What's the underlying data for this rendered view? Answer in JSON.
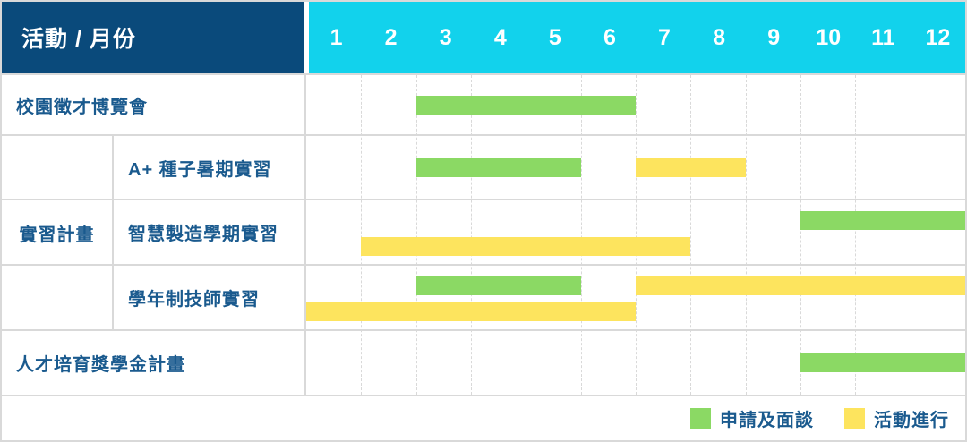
{
  "header": {
    "corner_label": "活動 / 月份"
  },
  "colors": {
    "header_bg": "#0a4a7b",
    "month_header_bg": "#12d2ec",
    "green": "#8bd964",
    "yellow": "#fde45e",
    "label_text": "#1a5a8e",
    "grid_line": "#d9d9d9"
  },
  "chart_data": {
    "type": "bar",
    "variant": "gantt",
    "title": "活動 / 月份",
    "x_categories": [
      "1",
      "2",
      "3",
      "4",
      "5",
      "6",
      "7",
      "8",
      "9",
      "10",
      "11",
      "12"
    ],
    "x_range": [
      1,
      12
    ],
    "grid": "dashed-vertical",
    "legend_position": "bottom-right",
    "legend": [
      {
        "label": "申請及面談",
        "color": "#8bd964"
      },
      {
        "label": "活動進行",
        "color": "#fde45e"
      }
    ],
    "rows": [
      {
        "group": "",
        "label": "校園徵才博覽會",
        "bars": [
          {
            "phase": "申請及面談",
            "start_month": 3,
            "end_month": 6,
            "lane": "center"
          }
        ]
      },
      {
        "group": "實習計畫",
        "label": "A+ 種子暑期實習",
        "bars": [
          {
            "phase": "申請及面談",
            "start_month": 3,
            "end_month": 5,
            "lane": "center"
          },
          {
            "phase": "活動進行",
            "start_month": 7,
            "end_month": 8,
            "lane": "center"
          }
        ]
      },
      {
        "group": "實習計畫",
        "label": "智慧製造學期實習",
        "bars": [
          {
            "phase": "申請及面談",
            "start_month": 10,
            "end_month": 12,
            "lane": "top"
          },
          {
            "phase": "活動進行",
            "start_month": 2,
            "end_month": 7,
            "lane": "bottom"
          }
        ]
      },
      {
        "group": "實習計畫",
        "label": "學年制技師實習",
        "bars": [
          {
            "phase": "申請及面談",
            "start_month": 3,
            "end_month": 5,
            "lane": "top"
          },
          {
            "phase": "活動進行",
            "start_month": 7,
            "end_month": 12,
            "lane": "top"
          },
          {
            "phase": "活動進行",
            "start_month": 1,
            "end_month": 6,
            "lane": "bottom"
          }
        ]
      },
      {
        "group": "",
        "label": "人才培育獎學金計畫",
        "bars": [
          {
            "phase": "申請及面談",
            "start_month": 10,
            "end_month": 12,
            "lane": "center"
          }
        ]
      }
    ]
  }
}
